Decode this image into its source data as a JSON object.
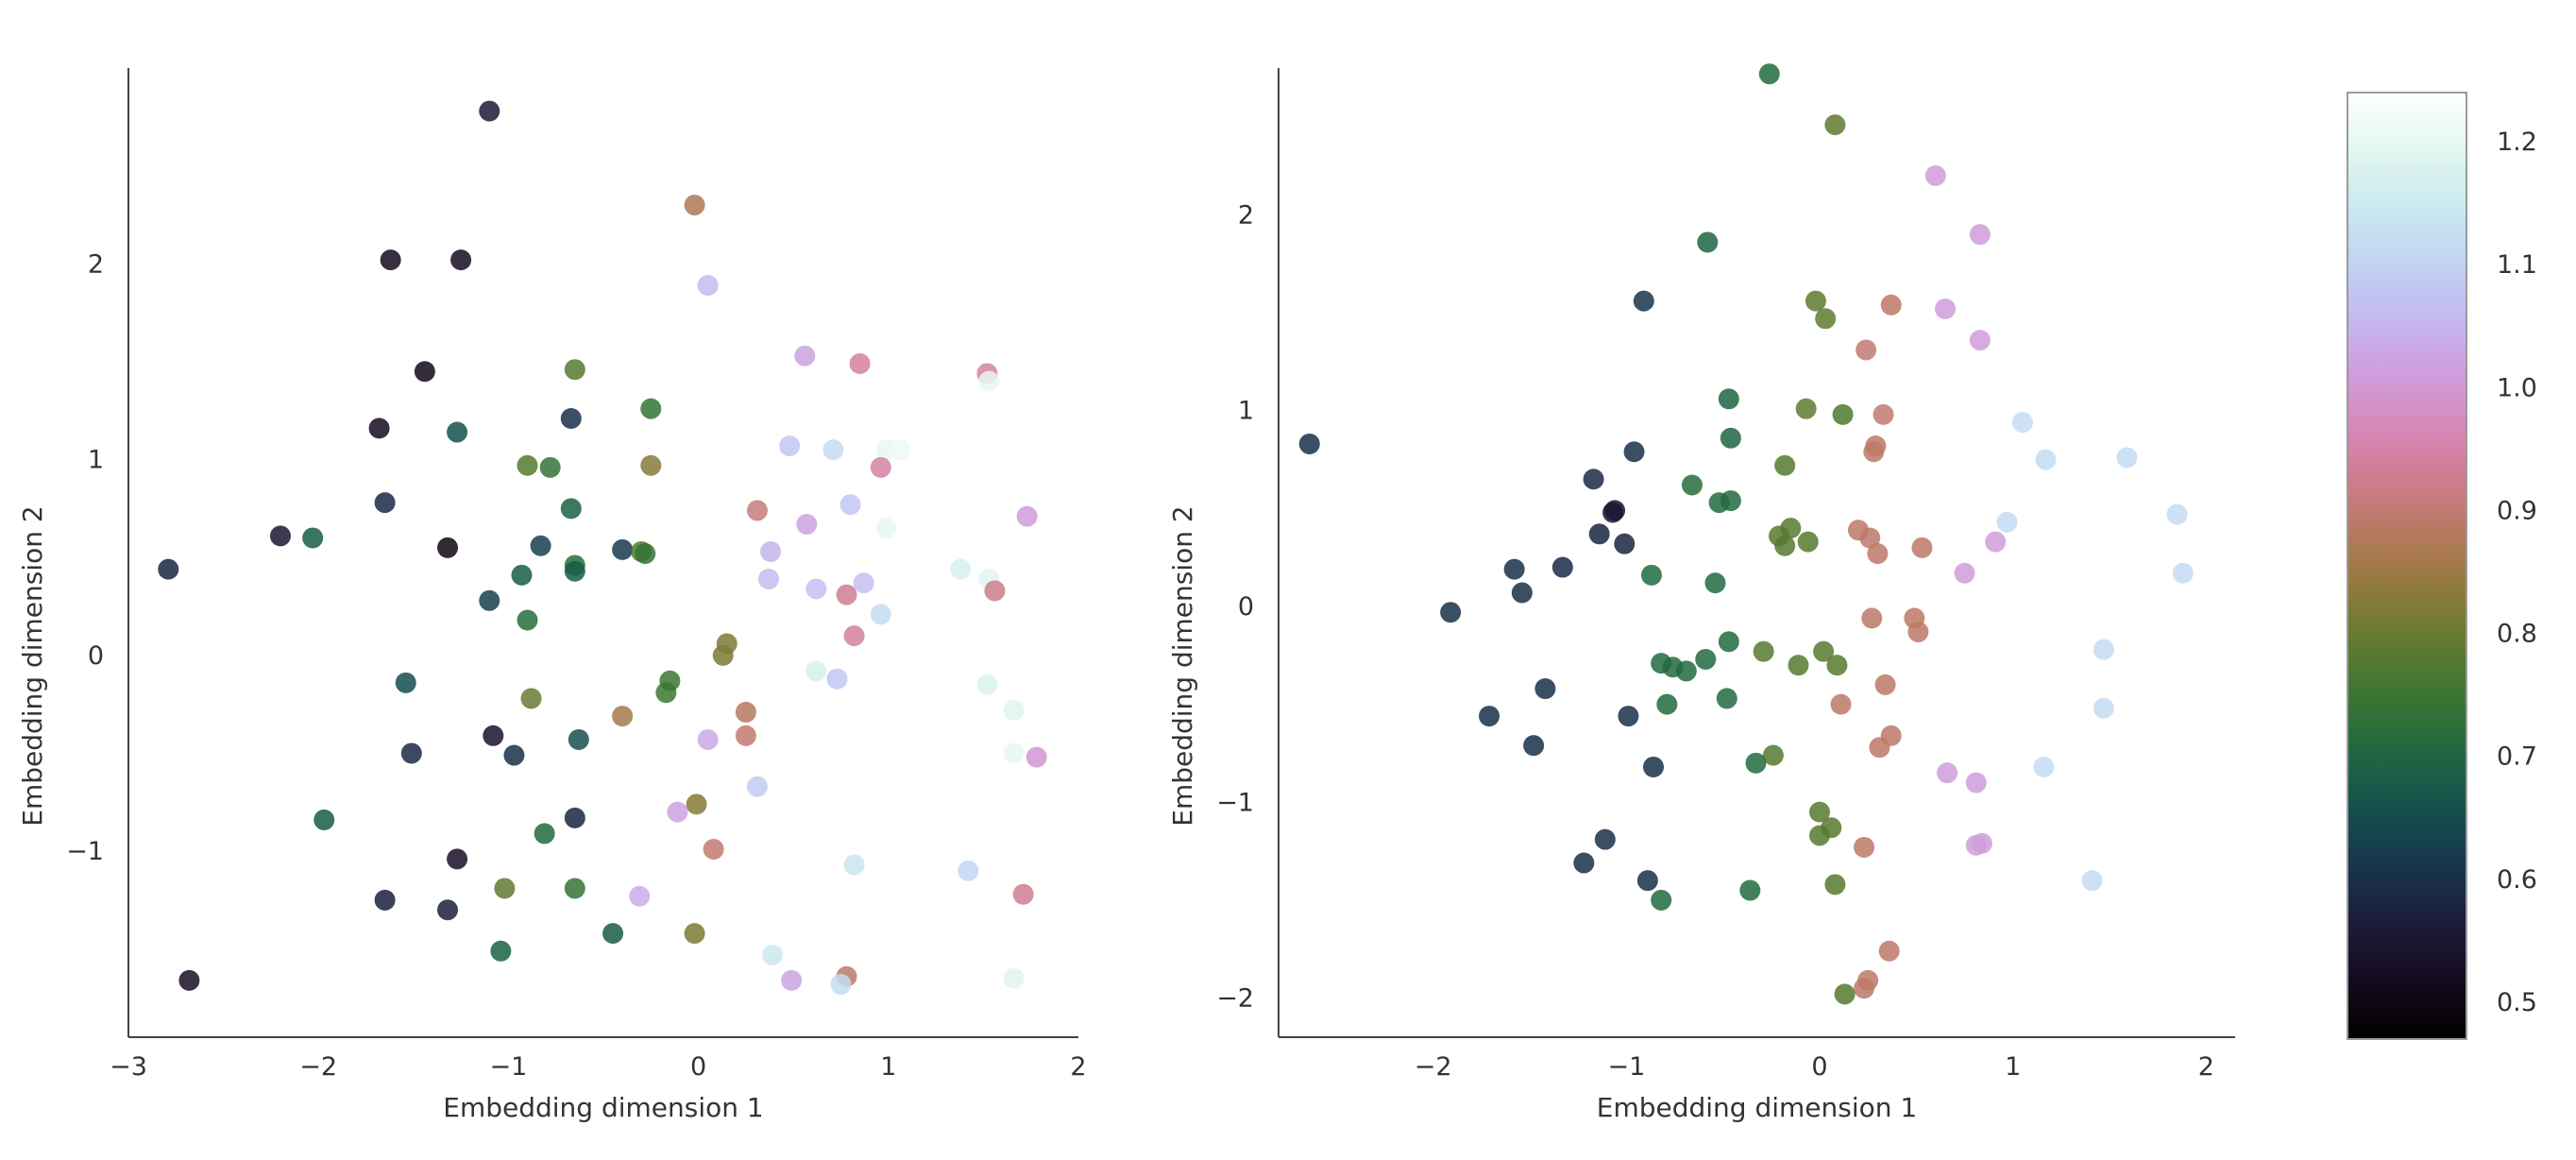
{
  "chart_data": [
    {
      "type": "scatter",
      "title": "",
      "xlabel": "Embedding dimension 1",
      "ylabel": "Embedding dimension 2",
      "xlim": [
        -3,
        2
      ],
      "ylim": [
        -1.95,
        3.0
      ],
      "xticks": [
        -3,
        -2,
        -1,
        0,
        1,
        2
      ],
      "yticks": [
        -1,
        0,
        1,
        2
      ],
      "grid": false,
      "colormap": "cubehelix",
      "points": [
        {
          "x": -1.1,
          "y": 2.78,
          "c": 0.56
        },
        {
          "x": -1.62,
          "y": 2.02,
          "c": 0.52
        },
        {
          "x": -1.25,
          "y": 2.02,
          "c": 0.52
        },
        {
          "x": -0.02,
          "y": 2.3,
          "c": 0.87
        },
        {
          "x": 0.05,
          "y": 1.89,
          "c": 1.06
        },
        {
          "x": -1.44,
          "y": 1.45,
          "c": 0.51
        },
        {
          "x": -1.68,
          "y": 1.16,
          "c": 0.52
        },
        {
          "x": -1.27,
          "y": 1.14,
          "c": 0.66
        },
        {
          "x": -0.65,
          "y": 1.46,
          "c": 0.78
        },
        {
          "x": -0.25,
          "y": 1.26,
          "c": 0.74
        },
        {
          "x": -0.67,
          "y": 1.21,
          "c": 0.6
        },
        {
          "x": 0.56,
          "y": 1.53,
          "c": 1.02
        },
        {
          "x": 0.85,
          "y": 1.49,
          "c": 0.94
        },
        {
          "x": 1.52,
          "y": 1.44,
          "c": 0.95
        },
        {
          "x": 1.53,
          "y": 1.4,
          "c": 1.2
        },
        {
          "x": -0.9,
          "y": 0.97,
          "c": 0.78
        },
        {
          "x": -0.78,
          "y": 0.96,
          "c": 0.74
        },
        {
          "x": -0.25,
          "y": 0.97,
          "c": 0.83
        },
        {
          "x": 0.48,
          "y": 1.07,
          "c": 1.08
        },
        {
          "x": 0.71,
          "y": 1.05,
          "c": 1.12
        },
        {
          "x": 0.99,
          "y": 1.05,
          "c": 1.2
        },
        {
          "x": 1.06,
          "y": 1.05,
          "c": 1.21
        },
        {
          "x": 0.96,
          "y": 0.96,
          "c": 0.95
        },
        {
          "x": -1.65,
          "y": 0.78,
          "c": 0.59
        },
        {
          "x": -0.67,
          "y": 0.75,
          "c": 0.69
        },
        {
          "x": 0.31,
          "y": 0.74,
          "c": 0.91
        },
        {
          "x": 0.8,
          "y": 0.77,
          "c": 1.08
        },
        {
          "x": 0.57,
          "y": 0.67,
          "c": 1.02
        },
        {
          "x": 0.99,
          "y": 0.65,
          "c": 1.2
        },
        {
          "x": 1.73,
          "y": 0.71,
          "c": 1.01
        },
        {
          "x": -2.2,
          "y": 0.61,
          "c": 0.55
        },
        {
          "x": -2.03,
          "y": 0.6,
          "c": 0.68
        },
        {
          "x": -1.32,
          "y": 0.55,
          "c": 0.5
        },
        {
          "x": -0.83,
          "y": 0.56,
          "c": 0.63
        },
        {
          "x": -0.4,
          "y": 0.54,
          "c": 0.62
        },
        {
          "x": -0.3,
          "y": 0.53,
          "c": 0.77
        },
        {
          "x": -0.28,
          "y": 0.52,
          "c": 0.74
        },
        {
          "x": 0.38,
          "y": 0.53,
          "c": 1.05
        },
        {
          "x": -2.79,
          "y": 0.44,
          "c": 0.58
        },
        {
          "x": -0.65,
          "y": 0.46,
          "c": 0.72
        },
        {
          "x": -0.65,
          "y": 0.43,
          "c": 0.68
        },
        {
          "x": -0.93,
          "y": 0.41,
          "c": 0.68
        },
        {
          "x": 0.37,
          "y": 0.39,
          "c": 1.06
        },
        {
          "x": 0.62,
          "y": 0.34,
          "c": 1.07
        },
        {
          "x": 0.87,
          "y": 0.37,
          "c": 1.07
        },
        {
          "x": 0.78,
          "y": 0.31,
          "c": 0.93
        },
        {
          "x": 1.38,
          "y": 0.44,
          "c": 1.17
        },
        {
          "x": 1.53,
          "y": 0.39,
          "c": 1.19
        },
        {
          "x": 1.56,
          "y": 0.33,
          "c": 0.92
        },
        {
          "x": -1.1,
          "y": 0.28,
          "c": 0.63
        },
        {
          "x": -0.9,
          "y": 0.18,
          "c": 0.72
        },
        {
          "x": 0.96,
          "y": 0.21,
          "c": 1.12
        },
        {
          "x": 0.82,
          "y": 0.1,
          "c": 0.94
        },
        {
          "x": 0.15,
          "y": 0.06,
          "c": 0.82
        },
        {
          "x": 0.13,
          "y": 0.0,
          "c": 0.82
        },
        {
          "x": 0.62,
          "y": -0.08,
          "c": 1.17
        },
        {
          "x": 0.73,
          "y": -0.12,
          "c": 1.08
        },
        {
          "x": 1.52,
          "y": -0.15,
          "c": 1.18
        },
        {
          "x": 1.66,
          "y": -0.28,
          "c": 1.19
        },
        {
          "x": -1.54,
          "y": -0.14,
          "c": 0.65
        },
        {
          "x": -0.88,
          "y": -0.22,
          "c": 0.8
        },
        {
          "x": -0.15,
          "y": -0.13,
          "c": 0.75
        },
        {
          "x": -0.17,
          "y": -0.19,
          "c": 0.75
        },
        {
          "x": -0.4,
          "y": -0.31,
          "c": 0.86
        },
        {
          "x": 0.25,
          "y": -0.29,
          "c": 0.88
        },
        {
          "x": 0.25,
          "y": -0.41,
          "c": 0.9
        },
        {
          "x": 0.05,
          "y": -0.43,
          "c": 1.03
        },
        {
          "x": -1.51,
          "y": -0.5,
          "c": 0.59
        },
        {
          "x": -1.08,
          "y": -0.41,
          "c": 0.54
        },
        {
          "x": -0.97,
          "y": -0.51,
          "c": 0.6
        },
        {
          "x": -0.63,
          "y": -0.43,
          "c": 0.66
        },
        {
          "x": 1.66,
          "y": -0.5,
          "c": 1.2
        },
        {
          "x": 1.78,
          "y": -0.52,
          "c": 1.0
        },
        {
          "x": 0.31,
          "y": -0.67,
          "c": 1.09
        },
        {
          "x": -1.97,
          "y": -0.84,
          "c": 0.68
        },
        {
          "x": -0.65,
          "y": -0.83,
          "c": 0.58
        },
        {
          "x": -0.81,
          "y": -0.91,
          "c": 0.71
        },
        {
          "x": -0.11,
          "y": -0.8,
          "c": 1.02
        },
        {
          "x": -0.01,
          "y": -0.76,
          "c": 0.83
        },
        {
          "x": 0.08,
          "y": -0.99,
          "c": 0.9
        },
        {
          "x": -1.27,
          "y": -1.04,
          "c": 0.53
        },
        {
          "x": 0.82,
          "y": -1.07,
          "c": 1.14
        },
        {
          "x": 1.42,
          "y": -1.1,
          "c": 1.11
        },
        {
          "x": -1.02,
          "y": -1.19,
          "c": 0.79
        },
        {
          "x": -0.65,
          "y": -1.19,
          "c": 0.74
        },
        {
          "x": -0.31,
          "y": -1.23,
          "c": 1.04
        },
        {
          "x": 1.71,
          "y": -1.22,
          "c": 0.93
        },
        {
          "x": -1.65,
          "y": -1.25,
          "c": 0.57
        },
        {
          "x": -1.32,
          "y": -1.3,
          "c": 0.57
        },
        {
          "x": -1.04,
          "y": -1.51,
          "c": 0.69
        },
        {
          "x": -0.45,
          "y": -1.42,
          "c": 0.68
        },
        {
          "x": -0.02,
          "y": -1.42,
          "c": 0.82
        },
        {
          "x": 0.39,
          "y": -1.53,
          "c": 1.15
        },
        {
          "x": 0.49,
          "y": -1.66,
          "c": 1.02
        },
        {
          "x": 0.78,
          "y": -1.64,
          "c": 0.89
        },
        {
          "x": 0.75,
          "y": -1.68,
          "c": 1.12
        },
        {
          "x": 1.66,
          "y": -1.65,
          "c": 1.19
        },
        {
          "x": -2.68,
          "y": -1.66,
          "c": 0.53
        }
      ]
    },
    {
      "type": "scatter",
      "title": "",
      "xlabel": "Embedding dimension 1",
      "ylabel": "Embedding dimension 2",
      "xlim": [
        -2.8,
        2.15
      ],
      "ylim": [
        -2.2,
        2.75
      ],
      "xticks": [
        -2,
        -1,
        0,
        1,
        2
      ],
      "yticks": [
        -2,
        -1,
        0,
        1,
        2
      ],
      "grid": false,
      "colormap": "cubehelix",
      "points": [
        {
          "x": -0.26,
          "y": 2.72,
          "c": 0.71
        },
        {
          "x": 0.08,
          "y": 2.46,
          "c": 0.79
        },
        {
          "x": 0.6,
          "y": 2.2,
          "c": 1.01
        },
        {
          "x": 0.83,
          "y": 1.9,
          "c": 1.01
        },
        {
          "x": -0.58,
          "y": 1.86,
          "c": 0.7
        },
        {
          "x": -0.91,
          "y": 1.56,
          "c": 0.61
        },
        {
          "x": -0.02,
          "y": 1.56,
          "c": 0.79
        },
        {
          "x": 0.37,
          "y": 1.54,
          "c": 0.89
        },
        {
          "x": 0.65,
          "y": 1.52,
          "c": 1.01
        },
        {
          "x": 0.03,
          "y": 1.47,
          "c": 0.79
        },
        {
          "x": 0.83,
          "y": 1.36,
          "c": 1.01
        },
        {
          "x": 0.24,
          "y": 1.31,
          "c": 0.9
        },
        {
          "x": -0.47,
          "y": 1.06,
          "c": 0.7
        },
        {
          "x": -0.07,
          "y": 1.01,
          "c": 0.79
        },
        {
          "x": 0.12,
          "y": 0.98,
          "c": 0.77
        },
        {
          "x": 0.33,
          "y": 0.98,
          "c": 0.9
        },
        {
          "x": 1.05,
          "y": 0.94,
          "c": 1.12
        },
        {
          "x": -0.46,
          "y": 0.86,
          "c": 0.7
        },
        {
          "x": -2.64,
          "y": 0.83,
          "c": 0.6
        },
        {
          "x": 0.29,
          "y": 0.82,
          "c": 0.89
        },
        {
          "x": 0.28,
          "y": 0.79,
          "c": 0.89
        },
        {
          "x": -0.96,
          "y": 0.79,
          "c": 0.6
        },
        {
          "x": 1.17,
          "y": 0.75,
          "c": 1.12
        },
        {
          "x": 1.59,
          "y": 0.76,
          "c": 1.12
        },
        {
          "x": -0.18,
          "y": 0.72,
          "c": 0.78
        },
        {
          "x": -1.17,
          "y": 0.65,
          "c": 0.59
        },
        {
          "x": -0.66,
          "y": 0.62,
          "c": 0.72
        },
        {
          "x": -0.46,
          "y": 0.54,
          "c": 0.71
        },
        {
          "x": -0.52,
          "y": 0.53,
          "c": 0.71
        },
        {
          "x": -1.06,
          "y": 0.49,
          "c": 0.55
        },
        {
          "x": -1.07,
          "y": 0.48,
          "c": 0.55
        },
        {
          "x": 1.85,
          "y": 0.47,
          "c": 1.12
        },
        {
          "x": 0.97,
          "y": 0.43,
          "c": 1.12
        },
        {
          "x": -0.15,
          "y": 0.4,
          "c": 0.78
        },
        {
          "x": 0.2,
          "y": 0.39,
          "c": 0.89
        },
        {
          "x": -0.21,
          "y": 0.36,
          "c": 0.78
        },
        {
          "x": -1.14,
          "y": 0.37,
          "c": 0.58
        },
        {
          "x": 0.26,
          "y": 0.35,
          "c": 0.89
        },
        {
          "x": -1.01,
          "y": 0.32,
          "c": 0.58
        },
        {
          "x": -0.18,
          "y": 0.31,
          "c": 0.78
        },
        {
          "x": -0.06,
          "y": 0.33,
          "c": 0.78
        },
        {
          "x": 0.91,
          "y": 0.33,
          "c": 1.01
        },
        {
          "x": 0.53,
          "y": 0.3,
          "c": 0.89
        },
        {
          "x": 0.3,
          "y": 0.27,
          "c": 0.89
        },
        {
          "x": -1.33,
          "y": 0.2,
          "c": 0.59
        },
        {
          "x": -1.58,
          "y": 0.19,
          "c": 0.6
        },
        {
          "x": -0.87,
          "y": 0.16,
          "c": 0.71
        },
        {
          "x": -0.54,
          "y": 0.12,
          "c": 0.71
        },
        {
          "x": 0.75,
          "y": 0.17,
          "c": 1.01
        },
        {
          "x": 1.88,
          "y": 0.17,
          "c": 1.12
        },
        {
          "x": -1.54,
          "y": 0.07,
          "c": 0.6
        },
        {
          "x": -1.91,
          "y": -0.03,
          "c": 0.6
        },
        {
          "x": 0.27,
          "y": -0.06,
          "c": 0.89
        },
        {
          "x": 0.49,
          "y": -0.06,
          "c": 0.89
        },
        {
          "x": 0.51,
          "y": -0.13,
          "c": 0.89
        },
        {
          "x": -0.47,
          "y": -0.18,
          "c": 0.71
        },
        {
          "x": 1.47,
          "y": -0.22,
          "c": 1.12
        },
        {
          "x": -0.29,
          "y": -0.23,
          "c": 0.78
        },
        {
          "x": 0.02,
          "y": -0.23,
          "c": 0.78
        },
        {
          "x": -0.59,
          "y": -0.27,
          "c": 0.71
        },
        {
          "x": -0.82,
          "y": -0.29,
          "c": 0.71
        },
        {
          "x": -0.76,
          "y": -0.31,
          "c": 0.71
        },
        {
          "x": -0.69,
          "y": -0.33,
          "c": 0.71
        },
        {
          "x": -0.11,
          "y": -0.3,
          "c": 0.78
        },
        {
          "x": 0.09,
          "y": -0.3,
          "c": 0.78
        },
        {
          "x": 0.34,
          "y": -0.4,
          "c": 0.89
        },
        {
          "x": -1.42,
          "y": -0.42,
          "c": 0.6
        },
        {
          "x": -0.48,
          "y": -0.47,
          "c": 0.71
        },
        {
          "x": 0.11,
          "y": -0.5,
          "c": 0.89
        },
        {
          "x": -0.79,
          "y": -0.5,
          "c": 0.71
        },
        {
          "x": 1.47,
          "y": -0.52,
          "c": 1.12
        },
        {
          "x": -0.99,
          "y": -0.56,
          "c": 0.6
        },
        {
          "x": -1.71,
          "y": -0.56,
          "c": 0.6
        },
        {
          "x": 0.37,
          "y": -0.66,
          "c": 0.89
        },
        {
          "x": 0.31,
          "y": -0.72,
          "c": 0.89
        },
        {
          "x": -1.48,
          "y": -0.71,
          "c": 0.6
        },
        {
          "x": -0.24,
          "y": -0.76,
          "c": 0.78
        },
        {
          "x": -0.33,
          "y": -0.8,
          "c": 0.71
        },
        {
          "x": 1.16,
          "y": -0.82,
          "c": 1.12
        },
        {
          "x": -0.86,
          "y": -0.82,
          "c": 0.6
        },
        {
          "x": 0.66,
          "y": -0.85,
          "c": 1.01
        },
        {
          "x": 0.81,
          "y": -0.9,
          "c": 1.01
        },
        {
          "x": 0.0,
          "y": -1.05,
          "c": 0.78
        },
        {
          "x": 0.06,
          "y": -1.13,
          "c": 0.78
        },
        {
          "x": 0.0,
          "y": -1.17,
          "c": 0.78
        },
        {
          "x": -1.11,
          "y": -1.19,
          "c": 0.6
        },
        {
          "x": 0.81,
          "y": -1.22,
          "c": 1.01
        },
        {
          "x": 0.23,
          "y": -1.23,
          "c": 0.89
        },
        {
          "x": 0.84,
          "y": -1.21,
          "c": 1.01
        },
        {
          "x": -1.22,
          "y": -1.31,
          "c": 0.6
        },
        {
          "x": -0.89,
          "y": -1.4,
          "c": 0.6
        },
        {
          "x": 0.08,
          "y": -1.42,
          "c": 0.78
        },
        {
          "x": 1.41,
          "y": -1.4,
          "c": 1.12
        },
        {
          "x": -0.36,
          "y": -1.45,
          "c": 0.71
        },
        {
          "x": -0.82,
          "y": -1.5,
          "c": 0.71
        },
        {
          "x": 0.36,
          "y": -1.76,
          "c": 0.89
        },
        {
          "x": 0.25,
          "y": -1.91,
          "c": 0.89
        },
        {
          "x": 0.23,
          "y": -1.95,
          "c": 0.89
        },
        {
          "x": 0.13,
          "y": -1.98,
          "c": 0.78
        }
      ]
    }
  ],
  "colorbar": {
    "colormap": "cubehelix",
    "range": [
      0.47,
      1.24
    ],
    "tick_values": [
      0.5,
      0.6,
      0.7,
      0.8,
      0.9,
      1.0,
      1.1,
      1.2
    ],
    "tick_labels": [
      "0.5",
      "0.6",
      "0.7",
      "0.8",
      "0.9",
      "1.0",
      "1.1",
      "1.2"
    ]
  }
}
